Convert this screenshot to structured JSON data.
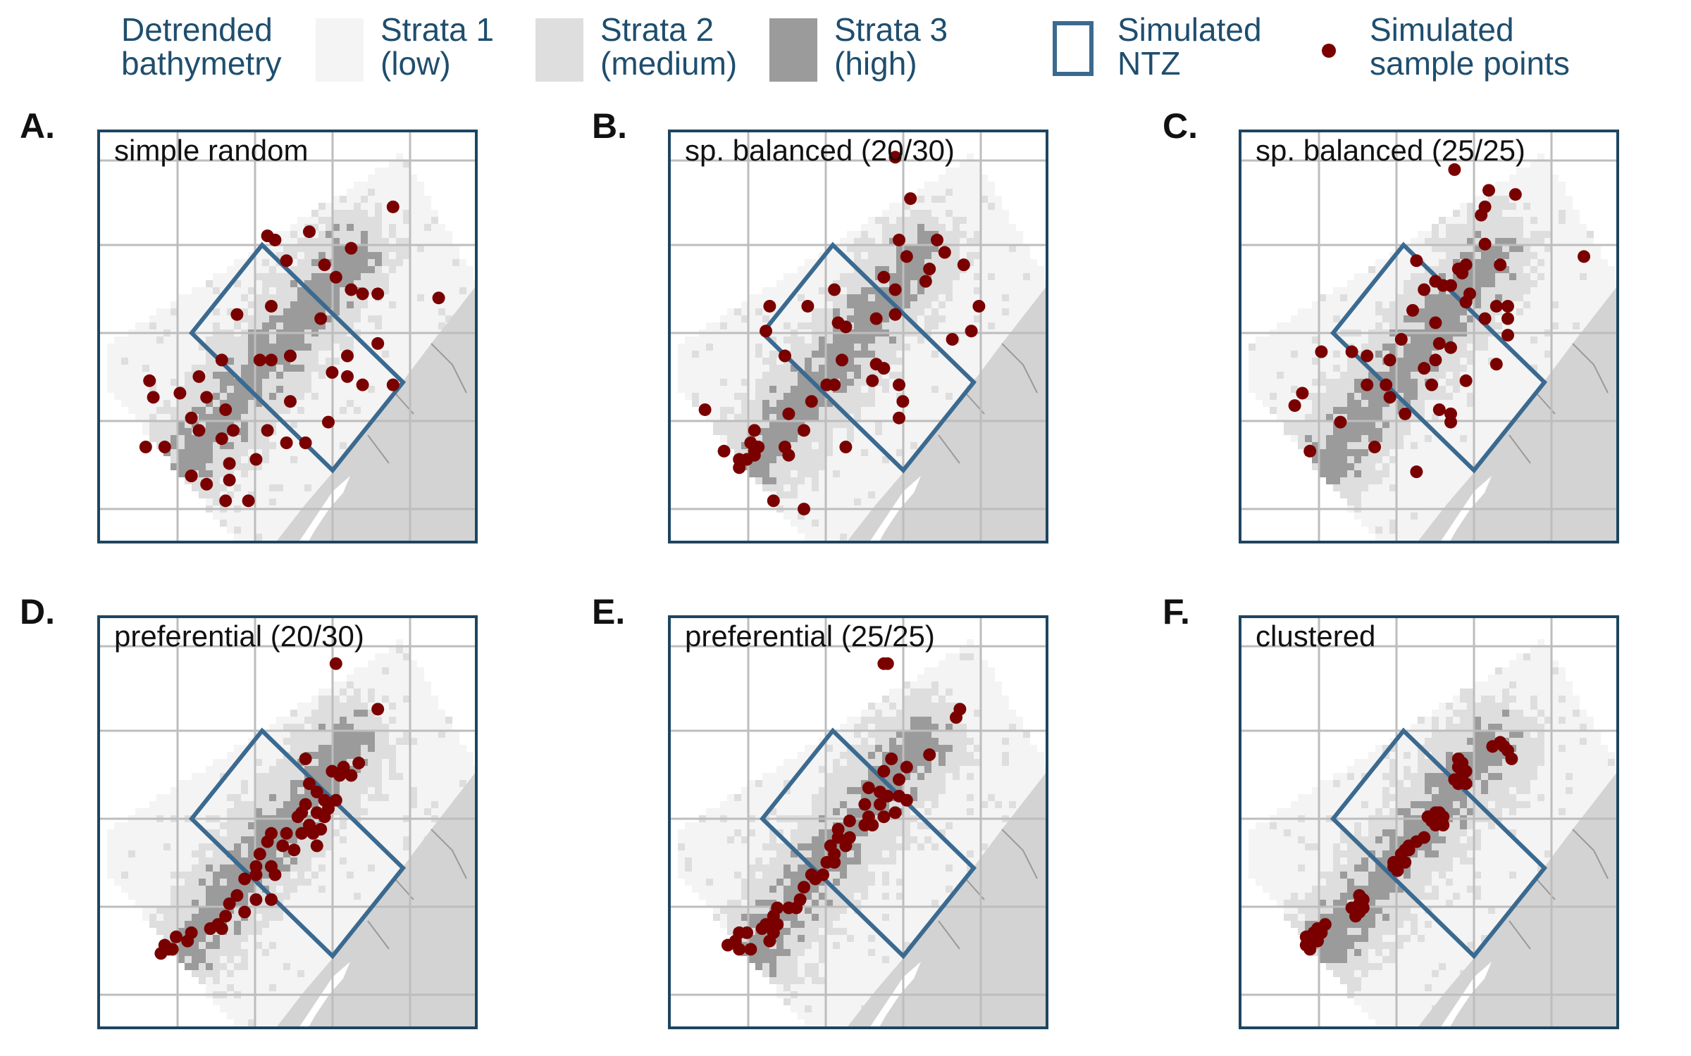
{
  "legend": {
    "title": "Detrended\nbathymetry",
    "items": [
      {
        "label": "Strata 1\n(low)",
        "color": "#f4f4f4"
      },
      {
        "label": "Strata 2\n(medium)",
        "color": "#dedede"
      },
      {
        "label": "Strata 3\n(high)",
        "color": "#9b9b9b"
      },
      {
        "label": "Simulated\nNTZ",
        "color": "#3b6a90"
      },
      {
        "label": "Simulated\nsample points",
        "color": "#7a0000"
      }
    ]
  },
  "colors": {
    "ntz": "#3b6a90",
    "point": "#7a0000",
    "frame": "#1d4560",
    "grid": "#bdbdbd",
    "land": "#d3d3d3",
    "legend_text": "#1f4e6e",
    "strata1": "#f4f4f4",
    "strata2": "#dedede",
    "strata3": "#9b9b9b"
  },
  "panels": [
    {
      "letter": "A.",
      "title": "simple random",
      "design": "random",
      "points": [
        [
          0.77,
          0.18
        ],
        [
          0.44,
          0.25
        ],
        [
          0.46,
          0.26
        ],
        [
          0.55,
          0.24
        ],
        [
          0.66,
          0.28
        ],
        [
          0.49,
          0.31
        ],
        [
          0.59,
          0.32
        ],
        [
          0.62,
          0.35
        ],
        [
          0.66,
          0.38
        ],
        [
          0.69,
          0.39
        ],
        [
          0.73,
          0.39
        ],
        [
          0.89,
          0.4
        ],
        [
          0.36,
          0.44
        ],
        [
          0.45,
          0.42
        ],
        [
          0.58,
          0.45
        ],
        [
          0.73,
          0.51
        ],
        [
          0.65,
          0.54
        ],
        [
          0.32,
          0.55
        ],
        [
          0.42,
          0.55
        ],
        [
          0.45,
          0.55
        ],
        [
          0.5,
          0.54
        ],
        [
          0.26,
          0.59
        ],
        [
          0.61,
          0.58
        ],
        [
          0.65,
          0.59
        ],
        [
          0.69,
          0.61
        ],
        [
          0.77,
          0.61
        ],
        [
          0.13,
          0.6
        ],
        [
          0.14,
          0.64
        ],
        [
          0.21,
          0.63
        ],
        [
          0.28,
          0.64
        ],
        [
          0.5,
          0.65
        ],
        [
          0.33,
          0.67
        ],
        [
          0.24,
          0.69
        ],
        [
          0.6,
          0.7
        ],
        [
          0.26,
          0.72
        ],
        [
          0.35,
          0.72
        ],
        [
          0.44,
          0.72
        ],
        [
          0.12,
          0.76
        ],
        [
          0.17,
          0.76
        ],
        [
          0.32,
          0.74
        ],
        [
          0.49,
          0.75
        ],
        [
          0.54,
          0.75
        ],
        [
          0.41,
          0.79
        ],
        [
          0.24,
          0.83
        ],
        [
          0.34,
          0.8
        ],
        [
          0.24,
          0.83
        ],
        [
          0.28,
          0.85
        ],
        [
          0.34,
          0.84
        ],
        [
          0.33,
          0.89
        ],
        [
          0.39,
          0.89
        ]
      ]
    },
    {
      "letter": "B.",
      "title": "sp. balanced (20/30)",
      "design": "balanced",
      "points": [
        [
          0.59,
          0.06
        ],
        [
          0.63,
          0.16
        ],
        [
          0.6,
          0.26
        ],
        [
          0.7,
          0.26
        ],
        [
          0.62,
          0.3
        ],
        [
          0.72,
          0.29
        ],
        [
          0.68,
          0.33
        ],
        [
          0.56,
          0.35
        ],
        [
          0.77,
          0.32
        ],
        [
          0.43,
          0.38
        ],
        [
          0.67,
          0.36
        ],
        [
          0.59,
          0.38
        ],
        [
          0.26,
          0.42
        ],
        [
          0.36,
          0.42
        ],
        [
          0.81,
          0.42
        ],
        [
          0.59,
          0.44
        ],
        [
          0.44,
          0.46
        ],
        [
          0.46,
          0.47
        ],
        [
          0.54,
          0.45
        ],
        [
          0.25,
          0.48
        ],
        [
          0.79,
          0.48
        ],
        [
          0.74,
          0.5
        ],
        [
          0.3,
          0.54
        ],
        [
          0.45,
          0.55
        ],
        [
          0.54,
          0.56
        ],
        [
          0.56,
          0.57
        ],
        [
          0.41,
          0.61
        ],
        [
          0.53,
          0.6
        ],
        [
          0.6,
          0.61
        ],
        [
          0.43,
          0.61
        ],
        [
          0.61,
          0.65
        ],
        [
          0.37,
          0.65
        ],
        [
          0.31,
          0.68
        ],
        [
          0.6,
          0.69
        ],
        [
          0.22,
          0.72
        ],
        [
          0.09,
          0.67
        ],
        [
          0.35,
          0.72
        ],
        [
          0.3,
          0.76
        ],
        [
          0.31,
          0.78
        ],
        [
          0.21,
          0.75
        ],
        [
          0.22,
          0.77
        ],
        [
          0.23,
          0.76
        ],
        [
          0.22,
          0.78
        ],
        [
          0.2,
          0.79
        ],
        [
          0.14,
          0.77
        ],
        [
          0.18,
          0.79
        ],
        [
          0.46,
          0.76
        ],
        [
          0.18,
          0.81
        ],
        [
          0.27,
          0.89
        ],
        [
          0.35,
          0.91
        ]
      ]
    },
    {
      "letter": "C.",
      "title": "sp. balanced (25/25)",
      "design": "balanced",
      "points": [
        [
          0.56,
          0.09
        ],
        [
          0.65,
          0.14
        ],
        [
          0.72,
          0.15
        ],
        [
          0.64,
          0.18
        ],
        [
          0.63,
          0.2
        ],
        [
          0.64,
          0.27
        ],
        [
          0.9,
          0.3
        ],
        [
          0.46,
          0.31
        ],
        [
          0.59,
          0.32
        ],
        [
          0.57,
          0.33
        ],
        [
          0.68,
          0.32
        ],
        [
          0.58,
          0.34
        ],
        [
          0.51,
          0.36
        ],
        [
          0.48,
          0.38
        ],
        [
          0.53,
          0.37
        ],
        [
          0.55,
          0.37
        ],
        [
          0.6,
          0.39
        ],
        [
          0.59,
          0.41
        ],
        [
          0.67,
          0.42
        ],
        [
          0.7,
          0.42
        ],
        [
          0.45,
          0.43
        ],
        [
          0.51,
          0.46
        ],
        [
          0.64,
          0.45
        ],
        [
          0.7,
          0.45
        ],
        [
          0.42,
          0.5
        ],
        [
          0.7,
          0.49
        ],
        [
          0.52,
          0.51
        ],
        [
          0.55,
          0.52
        ],
        [
          0.21,
          0.53
        ],
        [
          0.29,
          0.53
        ],
        [
          0.33,
          0.54
        ],
        [
          0.39,
          0.55
        ],
        [
          0.51,
          0.55
        ],
        [
          0.67,
          0.56
        ],
        [
          0.48,
          0.57
        ],
        [
          0.33,
          0.61
        ],
        [
          0.38,
          0.61
        ],
        [
          0.5,
          0.61
        ],
        [
          0.59,
          0.6
        ],
        [
          0.39,
          0.64
        ],
        [
          0.16,
          0.63
        ],
        [
          0.14,
          0.66
        ],
        [
          0.43,
          0.68
        ],
        [
          0.52,
          0.67
        ],
        [
          0.55,
          0.68
        ],
        [
          0.26,
          0.7
        ],
        [
          0.55,
          0.7
        ],
        [
          0.18,
          0.77
        ],
        [
          0.35,
          0.76
        ],
        [
          0.46,
          0.82
        ]
      ]
    },
    {
      "letter": "D.",
      "title": "preferential (20/30)",
      "design": "preferential",
      "points": [
        [
          0.62,
          0.11
        ],
        [
          0.73,
          0.22
        ],
        [
          0.54,
          0.34
        ],
        [
          0.64,
          0.36
        ],
        [
          0.68,
          0.35
        ],
        [
          0.61,
          0.37
        ],
        [
          0.63,
          0.38
        ],
        [
          0.55,
          0.4
        ],
        [
          0.66,
          0.38
        ],
        [
          0.57,
          0.42
        ],
        [
          0.59,
          0.44
        ],
        [
          0.54,
          0.45
        ],
        [
          0.62,
          0.44
        ],
        [
          0.53,
          0.47
        ],
        [
          0.57,
          0.47
        ],
        [
          0.6,
          0.46
        ],
        [
          0.52,
          0.48
        ],
        [
          0.59,
          0.48
        ],
        [
          0.55,
          0.5
        ],
        [
          0.58,
          0.51
        ],
        [
          0.45,
          0.52
        ],
        [
          0.49,
          0.52
        ],
        [
          0.53,
          0.52
        ],
        [
          0.56,
          0.52
        ],
        [
          0.44,
          0.54
        ],
        [
          0.48,
          0.55
        ],
        [
          0.57,
          0.55
        ],
        [
          0.51,
          0.56
        ],
        [
          0.42,
          0.57
        ],
        [
          0.45,
          0.6
        ],
        [
          0.41,
          0.6
        ],
        [
          0.41,
          0.62
        ],
        [
          0.46,
          0.62
        ],
        [
          0.38,
          0.63
        ],
        [
          0.36,
          0.67
        ],
        [
          0.41,
          0.68
        ],
        [
          0.45,
          0.68
        ],
        [
          0.34,
          0.69
        ],
        [
          0.38,
          0.71
        ],
        [
          0.31,
          0.74
        ],
        [
          0.33,
          0.72
        ],
        [
          0.29,
          0.75
        ],
        [
          0.24,
          0.76
        ],
        [
          0.32,
          0.75
        ],
        [
          0.2,
          0.77
        ],
        [
          0.23,
          0.78
        ],
        [
          0.18,
          0.8
        ],
        [
          0.17,
          0.79
        ],
        [
          0.16,
          0.81
        ],
        [
          0.19,
          0.8
        ]
      ]
    },
    {
      "letter": "E.",
      "title": "preferential (25/25)",
      "design": "preferential",
      "points": [
        [
          0.56,
          0.11
        ],
        [
          0.57,
          0.11
        ],
        [
          0.76,
          0.22
        ],
        [
          0.75,
          0.24
        ],
        [
          0.68,
          0.33
        ],
        [
          0.58,
          0.34
        ],
        [
          0.62,
          0.36
        ],
        [
          0.56,
          0.37
        ],
        [
          0.6,
          0.39
        ],
        [
          0.52,
          0.41
        ],
        [
          0.55,
          0.42
        ],
        [
          0.57,
          0.43
        ],
        [
          0.6,
          0.43
        ],
        [
          0.62,
          0.44
        ],
        [
          0.51,
          0.45
        ],
        [
          0.55,
          0.45
        ],
        [
          0.59,
          0.47
        ],
        [
          0.52,
          0.48
        ],
        [
          0.56,
          0.48
        ],
        [
          0.47,
          0.49
        ],
        [
          0.51,
          0.5
        ],
        [
          0.53,
          0.5
        ],
        [
          0.44,
          0.51
        ],
        [
          0.44,
          0.53
        ],
        [
          0.47,
          0.53
        ],
        [
          0.42,
          0.55
        ],
        [
          0.43,
          0.57
        ],
        [
          0.46,
          0.55
        ],
        [
          0.41,
          0.59
        ],
        [
          0.37,
          0.62
        ],
        [
          0.4,
          0.62
        ],
        [
          0.43,
          0.59
        ],
        [
          0.35,
          0.65
        ],
        [
          0.38,
          0.63
        ],
        [
          0.34,
          0.68
        ],
        [
          0.33,
          0.7
        ],
        [
          0.31,
          0.7
        ],
        [
          0.28,
          0.7
        ],
        [
          0.27,
          0.72
        ],
        [
          0.28,
          0.74
        ],
        [
          0.25,
          0.74
        ],
        [
          0.24,
          0.75
        ],
        [
          0.27,
          0.76
        ],
        [
          0.2,
          0.76
        ],
        [
          0.18,
          0.76
        ],
        [
          0.17,
          0.78
        ],
        [
          0.15,
          0.79
        ],
        [
          0.18,
          0.8
        ],
        [
          0.21,
          0.8
        ],
        [
          0.26,
          0.78
        ]
      ]
    },
    {
      "letter": "F.",
      "title": "clustered",
      "design": "clustered",
      "points": [
        [
          0.68,
          0.3
        ],
        [
          0.69,
          0.31
        ],
        [
          0.66,
          0.31
        ],
        [
          0.7,
          0.32
        ],
        [
          0.71,
          0.34
        ],
        [
          0.57,
          0.34
        ],
        [
          0.58,
          0.35
        ],
        [
          0.57,
          0.36
        ],
        [
          0.59,
          0.37
        ],
        [
          0.58,
          0.38
        ],
        [
          0.57,
          0.4
        ],
        [
          0.59,
          0.4
        ],
        [
          0.56,
          0.39
        ],
        [
          0.51,
          0.47
        ],
        [
          0.52,
          0.47
        ],
        [
          0.53,
          0.48
        ],
        [
          0.5,
          0.49
        ],
        [
          0.51,
          0.5
        ],
        [
          0.53,
          0.5
        ],
        [
          0.52,
          0.49
        ],
        [
          0.49,
          0.48
        ],
        [
          0.48,
          0.53
        ],
        [
          0.46,
          0.54
        ],
        [
          0.44,
          0.55
        ],
        [
          0.43,
          0.56
        ],
        [
          0.42,
          0.57
        ],
        [
          0.44,
          0.56
        ],
        [
          0.4,
          0.59
        ],
        [
          0.43,
          0.59
        ],
        [
          0.41,
          0.61
        ],
        [
          0.4,
          0.6
        ],
        [
          0.31,
          0.67
        ],
        [
          0.31,
          0.69
        ],
        [
          0.32,
          0.68
        ],
        [
          0.3,
          0.7
        ],
        [
          0.31,
          0.71
        ],
        [
          0.32,
          0.7
        ],
        [
          0.29,
          0.7
        ],
        [
          0.31,
          0.71
        ],
        [
          0.3,
          0.72
        ],
        [
          0.22,
          0.74
        ],
        [
          0.2,
          0.75
        ],
        [
          0.19,
          0.76
        ],
        [
          0.17,
          0.77
        ],
        [
          0.2,
          0.77
        ],
        [
          0.18,
          0.78
        ],
        [
          0.18,
          0.8
        ],
        [
          0.2,
          0.78
        ],
        [
          0.17,
          0.79
        ],
        [
          0.21,
          0.76
        ]
      ]
    }
  ]
}
